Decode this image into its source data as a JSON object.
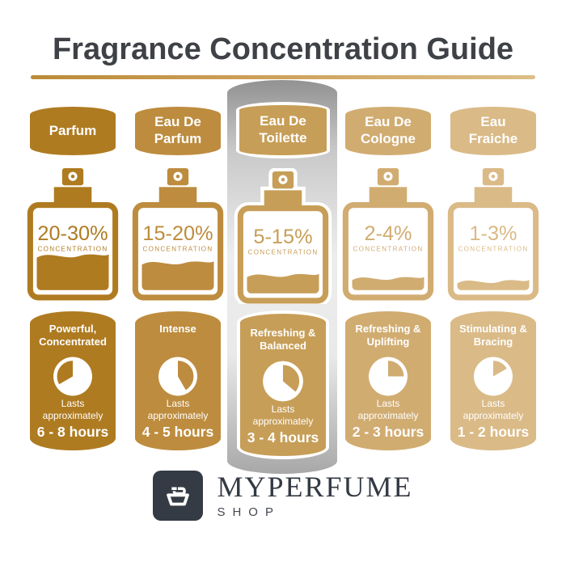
{
  "title": "Fragrance Concentration Guide",
  "accent_gradient": [
    "#BB8B38",
    "#DCBF87"
  ],
  "highlight_panel_color": "#C9C9C9",
  "columns": [
    {
      "name": "Parfum",
      "color": "#AF7B21",
      "highlighted": false,
      "bottle": {
        "percent": "20-30%",
        "label": "CONCENTRATION",
        "fill_level": 0.45
      },
      "card": {
        "description": "Powerful, Concentrated",
        "lasts": "Lasts approximately",
        "duration": "6 - 8 hours",
        "clock": {
          "start_deg": 240,
          "end_deg": 360
        }
      }
    },
    {
      "name": "Eau De Parfum",
      "color": "#BD8C3E",
      "highlighted": false,
      "bottle": {
        "percent": "15-20%",
        "label": "CONCENTRATION",
        "fill_level": 0.36
      },
      "card": {
        "description": "Intense",
        "lasts": "Lasts approximately",
        "duration": "4 - 5 hours",
        "clock": {
          "start_deg": 0,
          "end_deg": 150
        }
      }
    },
    {
      "name": "Eau De Toilette",
      "color": "#C79E57",
      "highlighted": true,
      "bottle": {
        "percent": "5-15%",
        "label": "CONCENTRATION",
        "fill_level": 0.24
      },
      "card": {
        "description": "Refreshing & Balanced",
        "lasts": "Lasts approximately",
        "duration": "3 - 4 hours",
        "clock": {
          "start_deg": 0,
          "end_deg": 130
        }
      }
    },
    {
      "name": "Eau De Cologne",
      "color": "#D1AC71",
      "highlighted": false,
      "bottle": {
        "percent": "2-4%",
        "label": "CONCENTRATION",
        "fill_level": 0.16
      },
      "card": {
        "description": "Refreshing & Uplifting",
        "lasts": "Lasts approximately",
        "duration": "2 - 3 hours",
        "clock": {
          "start_deg": 0,
          "end_deg": 90
        }
      }
    },
    {
      "name": "Eau Fraiche",
      "color": "#DABA87",
      "highlighted": false,
      "bottle": {
        "percent": "1-3%",
        "label": "CONCENTRATION",
        "fill_level": 0.12
      },
      "card": {
        "description": "Stimulating & Bracing",
        "lasts": "Lasts approximately",
        "duration": "1 - 2 hours",
        "clock": {
          "start_deg": 0,
          "end_deg": 60
        }
      }
    }
  ],
  "footer": {
    "brand": "MYPERFUME",
    "sub": "SHOP"
  }
}
